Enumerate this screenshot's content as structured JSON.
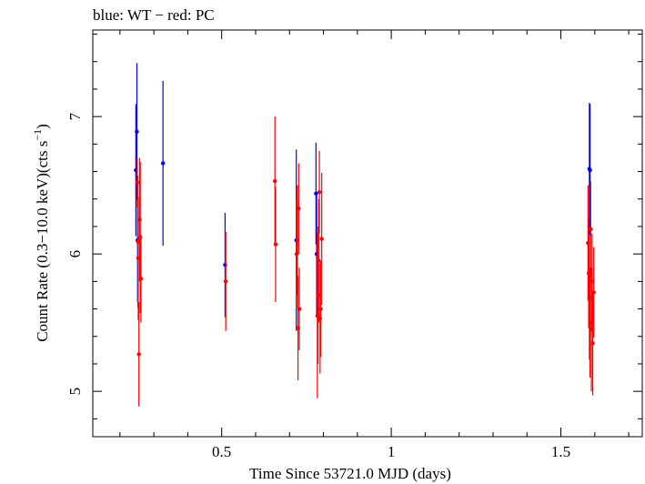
{
  "chart_data": {
    "type": "scatter",
    "title": "blue: WT − red: PC",
    "xlabel": "Time Since 53721.0 MJD (days)",
    "ylabel_main": "Count Rate (0.3−10.0 keV)(cts s",
    "ylabel_sup": "−1",
    "ylabel_end": ")",
    "xlim": [
      0.12,
      1.74
    ],
    "ylim": [
      4.67,
      7.63
    ],
    "x_ticks": [
      {
        "value": 0.5,
        "label": "0.5"
      },
      {
        "value": 1.0,
        "label": "1"
      },
      {
        "value": 1.5,
        "label": "1.5"
      }
    ],
    "y_ticks": [
      {
        "value": 5,
        "label": "5"
      },
      {
        "value": 6,
        "label": "6"
      },
      {
        "value": 7,
        "label": "7"
      }
    ],
    "grid": false,
    "series": [
      {
        "color": "#0000ff",
        "points": [
          {
            "x": 0.247,
            "y": 6.61,
            "err": 0.48
          },
          {
            "x": 0.25,
            "y": 6.89,
            "err": 0.5
          },
          {
            "x": 0.252,
            "y": 6.1,
            "err": 0.45
          },
          {
            "x": 0.327,
            "y": 6.66,
            "err": 0.6
          },
          {
            "x": 0.51,
            "y": 5.92,
            "err": 0.38
          },
          {
            "x": 0.72,
            "y": 6.1,
            "err": 0.66
          },
          {
            "x": 0.778,
            "y": 6.44,
            "err": 0.37
          },
          {
            "x": 0.78,
            "y": 6.0,
            "err": 0.44
          },
          {
            "x": 1.584,
            "y": 6.62,
            "err": 0.48
          },
          {
            "x": 1.586,
            "y": 6.61,
            "err": 0.48
          }
        ]
      },
      {
        "color": "#ff0000",
        "points": [
          {
            "x": 0.251,
            "y": 6.52,
            "err": 0.18
          },
          {
            "x": 0.253,
            "y": 6.09,
            "err": 0.48
          },
          {
            "x": 0.254,
            "y": 5.97,
            "err": 0.45
          },
          {
            "x": 0.256,
            "y": 5.27,
            "err": 0.38
          },
          {
            "x": 0.258,
            "y": 6.25,
            "err": 0.45
          },
          {
            "x": 0.26,
            "y": 6.12,
            "err": 0.55
          },
          {
            "x": 0.262,
            "y": 5.82,
            "err": 0.32
          },
          {
            "x": 0.512,
            "y": 5.8,
            "err": 0.36
          },
          {
            "x": 0.657,
            "y": 6.53,
            "err": 0.47
          },
          {
            "x": 0.659,
            "y": 6.07,
            "err": 0.42
          },
          {
            "x": 0.721,
            "y": 6.0,
            "err": 0.4
          },
          {
            "x": 0.723,
            "y": 6.1,
            "err": 0.4
          },
          {
            "x": 0.725,
            "y": 5.46,
            "err": 0.38
          },
          {
            "x": 0.727,
            "y": 6.33,
            "err": 0.33
          },
          {
            "x": 0.729,
            "y": 5.6,
            "err": 0.3
          },
          {
            "x": 0.782,
            "y": 5.55,
            "err": 0.6
          },
          {
            "x": 0.784,
            "y": 5.7,
            "err": 0.5
          },
          {
            "x": 0.786,
            "y": 5.95,
            "err": 0.45
          },
          {
            "x": 0.788,
            "y": 6.45,
            "err": 0.3
          },
          {
            "x": 0.79,
            "y": 5.53,
            "err": 0.4
          },
          {
            "x": 0.792,
            "y": 5.6,
            "err": 0.35
          },
          {
            "x": 0.795,
            "y": 6.11,
            "err": 0.48
          },
          {
            "x": 1.58,
            "y": 6.08,
            "err": 0.42
          },
          {
            "x": 1.582,
            "y": 5.86,
            "err": 0.4
          },
          {
            "x": 1.584,
            "y": 5.68,
            "err": 0.45
          },
          {
            "x": 1.586,
            "y": 5.5,
            "err": 0.4
          },
          {
            "x": 1.588,
            "y": 6.18,
            "err": 0.35
          },
          {
            "x": 1.59,
            "y": 5.45,
            "err": 0.45
          },
          {
            "x": 1.592,
            "y": 5.8,
            "err": 0.35
          },
          {
            "x": 1.594,
            "y": 5.35,
            "err": 0.38
          },
          {
            "x": 1.597,
            "y": 5.72,
            "err": 0.33
          }
        ]
      }
    ]
  }
}
